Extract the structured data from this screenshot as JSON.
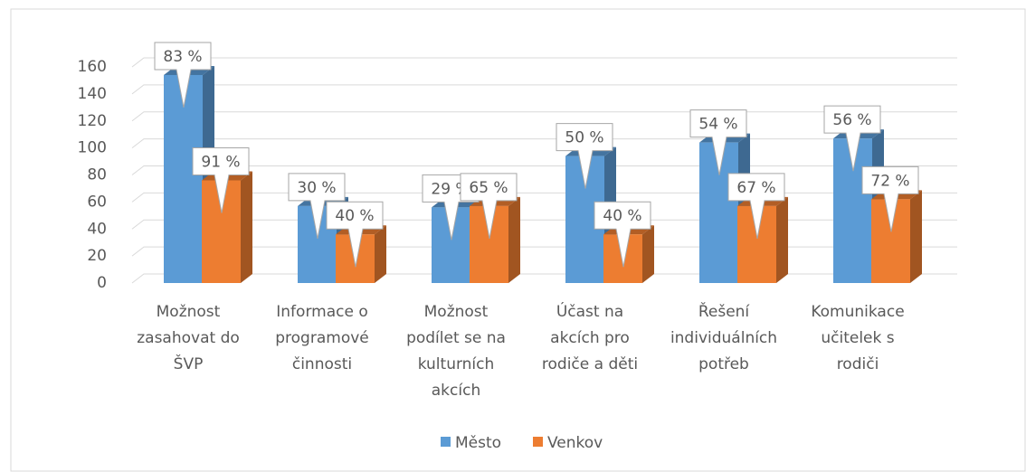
{
  "chart_data": {
    "type": "bar3d",
    "categories": [
      "Možnost zasahovat do ŠVP",
      "Informace o programové činnosti",
      "Možnost podílet se na kulturních akcích",
      "Účast na akcích pro rodiče a děti",
      "Řešení individuálních potřeb",
      "Komunikace učitelek s rodiči"
    ],
    "series": [
      {
        "name": "Město",
        "color": "#5b9bd5",
        "values": [
          154,
          57,
          56,
          94,
          104,
          107
        ],
        "percent_labels": [
          "83 %",
          "30 %",
          "29 %",
          "50 %",
          "54 %",
          "56 %"
        ]
      },
      {
        "name": "Venkov",
        "color": "#ed7d31",
        "values": [
          76,
          36,
          57,
          36,
          57,
          62
        ],
        "percent_labels": [
          "91 %",
          "40 %",
          "65 %",
          "40 %",
          "67 %",
          "72 %"
        ]
      }
    ],
    "ylim": [
      0,
      160
    ],
    "yticks": [
      0,
      20,
      40,
      60,
      80,
      100,
      120,
      140,
      160
    ],
    "grid": true,
    "legend": "bottom"
  }
}
